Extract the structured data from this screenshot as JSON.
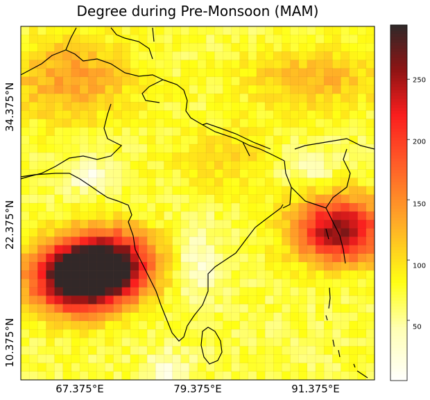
{
  "title": "Degree during Pre-Monsoon (MAM)",
  "axes": {
    "x_ticks": [
      "67.375°E",
      "79.375°E",
      "91.375°E"
    ],
    "y_ticks": [
      "34.375°N",
      "22.375°N",
      "10.375°N"
    ]
  },
  "colorbar": {
    "colormap": "hot_r (white → yellow → orange → red → dark)",
    "range": [
      0,
      295
    ],
    "ticks": [
      "50",
      "100",
      "150",
      "200",
      "250"
    ]
  },
  "chart_data": {
    "type": "heatmap",
    "title": "Degree during Pre-Monsoon (MAM)",
    "xlabel": "",
    "ylabel": "",
    "x_range_lon": [
      60.875,
      97.125
    ],
    "y_range_lat": [
      5.125,
      41.375
    ],
    "hotspots": [
      {
        "lon": 66.5,
        "lat": 15.5,
        "value": 285
      },
      {
        "lon": 70.0,
        "lat": 17.0,
        "value": 260
      },
      {
        "lon": 93.5,
        "lat": 20.5,
        "value": 250
      }
    ],
    "value_range": [
      0,
      295
    ]
  }
}
